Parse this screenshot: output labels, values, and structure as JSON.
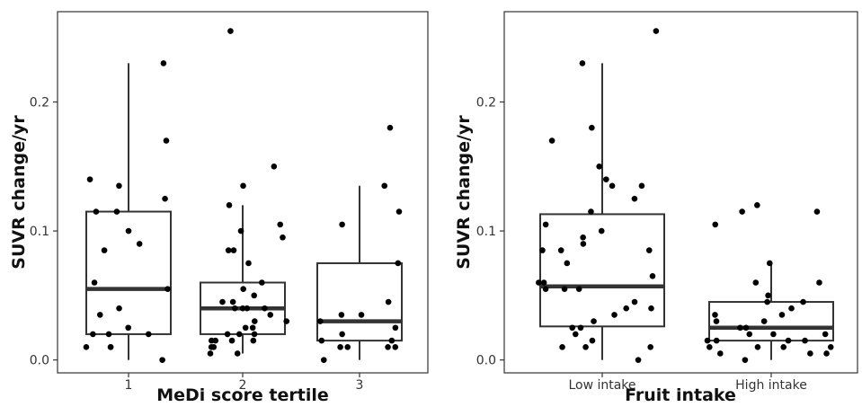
{
  "chart_data": [
    {
      "type": "box",
      "xlabel": "MeDi score tertile",
      "ylabel": "SUVR change/yr",
      "ylim": [
        -0.01,
        0.27
      ],
      "yticks": [
        0.0,
        0.1,
        0.2
      ],
      "ytick_labels": [
        "0.0",
        "0.1",
        "0.2"
      ],
      "grid": false,
      "categories": [
        "1",
        "2",
        "3"
      ],
      "boxes": [
        {
          "q1": 0.02,
          "median": 0.055,
          "q3": 0.115,
          "whisker_low": 0.0,
          "whisker_high": 0.23
        },
        {
          "q1": 0.02,
          "median": 0.04,
          "q3": 0.06,
          "whisker_low": 0.005,
          "whisker_high": 0.12
        },
        {
          "q1": 0.015,
          "median": 0.03,
          "q3": 0.075,
          "whisker_low": 0.0,
          "whisker_high": 0.135
        }
      ],
      "points": [
        [
          0.23,
          0.17,
          0.14,
          0.135,
          0.125,
          0.115,
          0.115,
          0.1,
          0.09,
          0.085,
          0.06,
          0.055,
          0.04,
          0.035,
          0.025,
          0.02,
          0.02,
          0.02,
          0.01,
          0.01,
          0.01,
          0.0
        ],
        [
          0.255,
          0.15,
          0.135,
          0.12,
          0.105,
          0.1,
          0.095,
          0.085,
          0.085,
          0.075,
          0.06,
          0.055,
          0.05,
          0.045,
          0.045,
          0.04,
          0.04,
          0.04,
          0.04,
          0.035,
          0.03,
          0.03,
          0.025,
          0.025,
          0.02,
          0.02,
          0.02,
          0.015,
          0.015,
          0.015,
          0.015,
          0.01,
          0.01,
          0.005,
          0.005
        ],
        [
          0.18,
          0.135,
          0.115,
          0.105,
          0.075,
          0.045,
          0.035,
          0.035,
          0.03,
          0.025,
          0.02,
          0.015,
          0.015,
          0.01,
          0.01,
          0.01,
          0.01,
          0.0
        ]
      ]
    },
    {
      "type": "box",
      "xlabel": "Fruit intake",
      "ylabel": "SUVR change/yr",
      "ylim": [
        -0.01,
        0.27
      ],
      "yticks": [
        0.0,
        0.1,
        0.2
      ],
      "ytick_labels": [
        "0.0",
        "0.1",
        "0.2"
      ],
      "grid": false,
      "categories": [
        "Low intake",
        "High intake"
      ],
      "boxes": [
        {
          "q1": 0.026,
          "median": 0.057,
          "q3": 0.113,
          "whisker_low": 0.0,
          "whisker_high": 0.23
        },
        {
          "q1": 0.015,
          "median": 0.025,
          "q3": 0.045,
          "whisker_low": 0.0,
          "whisker_high": 0.075
        }
      ],
      "points": [
        [
          0.255,
          0.23,
          0.18,
          0.17,
          0.15,
          0.14,
          0.135,
          0.135,
          0.125,
          0.115,
          0.105,
          0.1,
          0.095,
          0.09,
          0.085,
          0.085,
          0.085,
          0.075,
          0.065,
          0.06,
          0.06,
          0.055,
          0.055,
          0.055,
          0.045,
          0.04,
          0.04,
          0.035,
          0.03,
          0.025,
          0.025,
          0.02,
          0.015,
          0.01,
          0.01,
          0.01,
          0.0
        ],
        [
          0.12,
          0.115,
          0.115,
          0.105,
          0.075,
          0.06,
          0.06,
          0.05,
          0.045,
          0.045,
          0.04,
          0.035,
          0.035,
          0.03,
          0.03,
          0.025,
          0.025,
          0.02,
          0.02,
          0.02,
          0.015,
          0.015,
          0.015,
          0.015,
          0.01,
          0.01,
          0.01,
          0.01,
          0.005,
          0.005,
          0.005,
          0.0
        ]
      ]
    }
  ]
}
